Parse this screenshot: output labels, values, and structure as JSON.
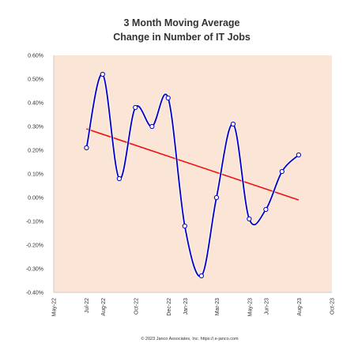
{
  "chart_data": {
    "type": "line",
    "title_lines": [
      "3 Month Moving Average",
      "Change in Number of IT Jobs"
    ],
    "xlabel": "",
    "ylabel": "",
    "ylim": [
      -0.4,
      0.6
    ],
    "y_ticks": [
      "0.60%",
      "0.50%",
      "0.40%",
      "0.30%",
      "0.20%",
      "0.10%",
      "0.00%",
      "-0.10%",
      "-0.20%",
      "-0.30%",
      "-0.40%"
    ],
    "x_ticks": [
      "May-22",
      "Jul-22",
      "Aug-22",
      "Oct-22",
      "Dec-22",
      "Jan-23",
      "Mar-23",
      "May-23",
      "Jun-23",
      "Aug-23",
      "Oct-23"
    ],
    "x_tick_dates": [
      "2022-05-01",
      "2022-07-01",
      "2022-08-01",
      "2022-10-01",
      "2022-12-01",
      "2023-01-01",
      "2023-03-01",
      "2023-05-01",
      "2023-06-01",
      "2023-08-01",
      "2023-10-01"
    ],
    "series": [
      {
        "color": "#0000cc",
        "style": "smoothed-line-with-markers",
        "x": [
          "2022-07-01",
          "2022-07-31",
          "2022-08-31",
          "2022-09-30",
          "2022-10-31",
          "2022-11-30",
          "2022-12-31",
          "2023-01-31",
          "2023-02-28",
          "2023-03-31",
          "2023-04-30",
          "2023-05-31",
          "2023-06-30",
          "2023-07-31"
        ],
        "values": [
          0.21,
          0.52,
          0.08,
          0.38,
          0.3,
          0.42,
          -0.12,
          -0.33,
          0.0,
          0.31,
          -0.09,
          -0.05,
          0.11,
          0.18
        ]
      },
      {
        "color": "#ee1111",
        "style": "linear-trendline",
        "x": [
          "2022-07-01",
          "2023-07-31"
        ],
        "values": [
          0.29,
          -0.01
        ]
      }
    ],
    "plot_background": "#fbe5d6",
    "grid": false,
    "legend": "none",
    "footnote": "© 2023 Janco Associates, Inc. https://.e-janco.com"
  }
}
